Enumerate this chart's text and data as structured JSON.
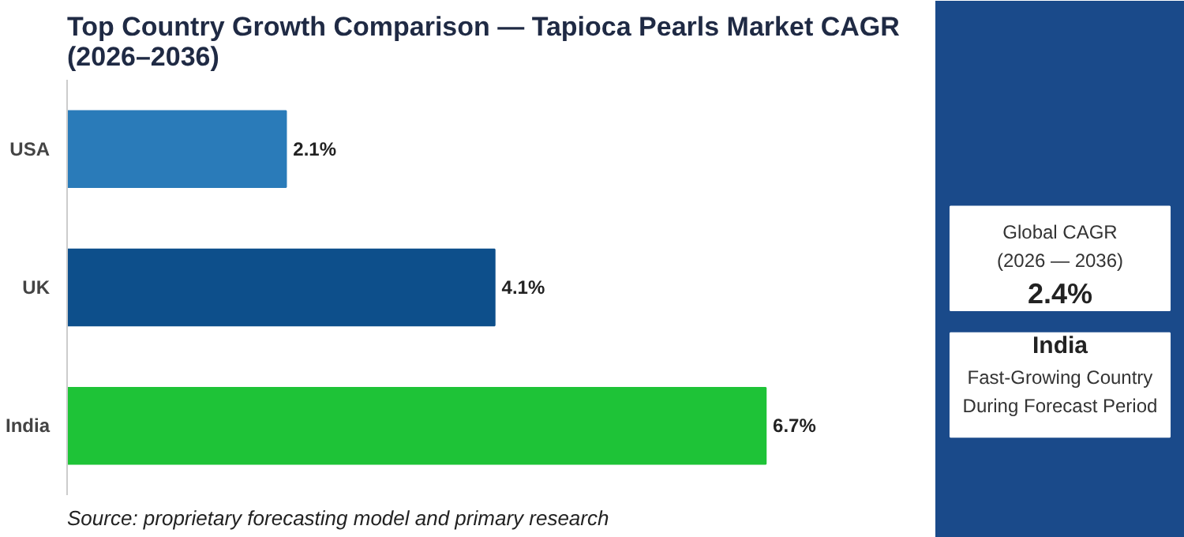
{
  "chart_data": {
    "type": "bar",
    "orientation": "horizontal",
    "title": "Top Country Growth Comparison — Tapioca Pearls Market CAGR (2026–2036)",
    "categories": [
      "USA",
      "UK",
      "India"
    ],
    "values": [
      2.1,
      4.1,
      6.7
    ],
    "colors": [
      "#2a7bb9",
      "#0d4f8b",
      "#1ec337"
    ],
    "value_labels": [
      "2.1%",
      "4.1%",
      "6.7%"
    ],
    "grid": false,
    "annotations": [
      "Global CAGR\n(2026 — 2036)",
      "2.4%",
      "India",
      "Fast-Growing Country\nDuring Forecast Period",
      "Source: proprietary forecasting model and primary research"
    ]
  }
}
